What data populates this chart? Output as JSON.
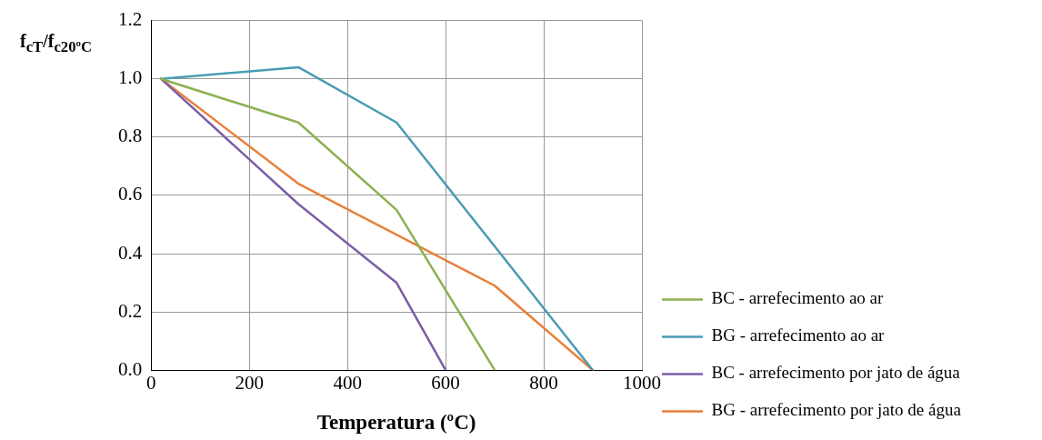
{
  "chart_data": {
    "type": "line",
    "xlabel": "Temperatura (ºC)",
    "ylabel": "f$_{cT}$/f$_{c20ºC}$",
    "xlim": [
      0,
      1000
    ],
    "xticks": [
      0,
      200,
      400,
      600,
      800,
      1000
    ],
    "ylim": [
      0,
      1.2
    ],
    "yticks": [
      {
        "value": 0,
        "label": "0.0"
      },
      0.2,
      0.4,
      0.6,
      0.8,
      {
        "value": 1,
        "label": "1.0"
      },
      1.2
    ],
    "grid": true,
    "legend": "right",
    "marker": "none",
    "line_style": "solid",
    "series": [
      {
        "name": "BC - arrefecimento ao ar",
        "color": "#8db051",
        "x": [
          20,
          300,
          500,
          700
        ],
        "values": [
          1.0,
          0.85,
          0.55,
          0
        ]
      },
      {
        "name": "BG - arrefecimento ao ar",
        "color": "#4a9cb5",
        "x": [
          20,
          300,
          500,
          900
        ],
        "values": [
          1.0,
          1.04,
          0.85,
          0
        ]
      },
      {
        "name": "BC - arrefecimento por jato de água",
        "color": "#7b5ea7",
        "x": [
          20,
          300,
          500,
          600
        ],
        "values": [
          1.0,
          0.57,
          0.3,
          0
        ]
      },
      {
        "name": "BG - arrefecimento por jato de água",
        "color": "#e8803a",
        "x": [
          20,
          300,
          700,
          900
        ],
        "values": [
          1.0,
          0.64,
          0.29,
          0
        ]
      }
    ]
  }
}
